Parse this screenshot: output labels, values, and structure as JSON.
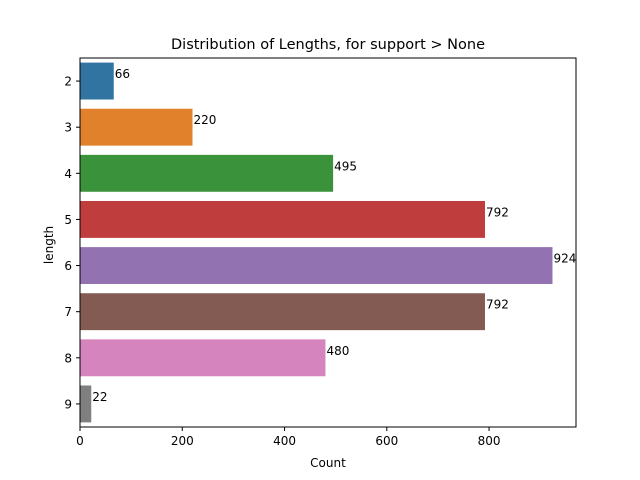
{
  "chart_data": {
    "type": "bar",
    "orientation": "horizontal",
    "title": "Distribution of Lengths, for support > None",
    "xlabel": "Count",
    "ylabel": "length",
    "categories": [
      "2",
      "3",
      "4",
      "5",
      "6",
      "7",
      "8",
      "9"
    ],
    "values": [
      66,
      220,
      495,
      792,
      924,
      792,
      480,
      22
    ],
    "data_labels": [
      "66",
      "220",
      "495",
      "792",
      "924",
      "792",
      "480",
      "22"
    ],
    "xlim": [
      0,
      970
    ],
    "xticks": [
      0,
      200,
      400,
      600,
      800
    ],
    "xtick_labels": [
      "0",
      "200",
      "400",
      "600",
      "800"
    ],
    "grid": false,
    "colors": [
      "#3274a1",
      "#e1812c",
      "#3a923a",
      "#c03d3e",
      "#9372b2",
      "#845b53",
      "#d684bd",
      "#7f7f7f"
    ]
  }
}
